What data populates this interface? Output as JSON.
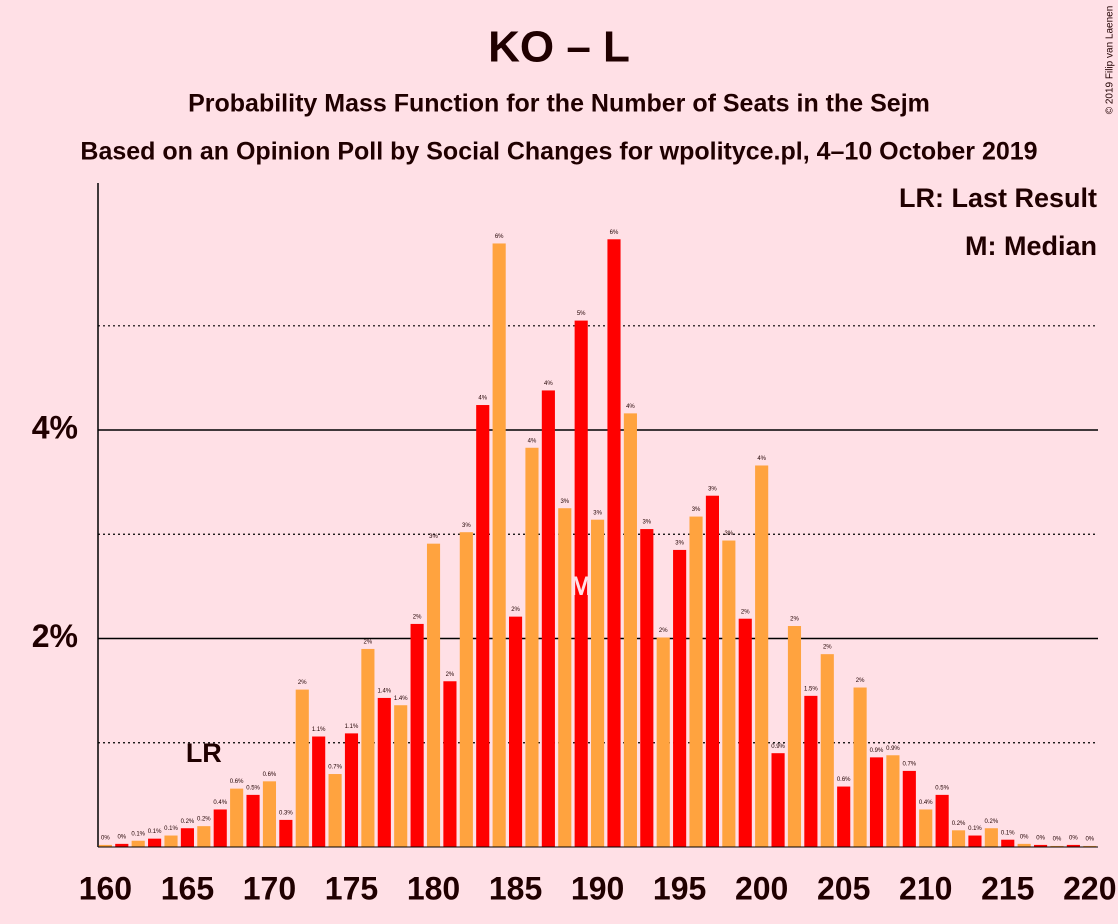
{
  "chart_data": {
    "type": "bar",
    "title": "KO – L",
    "subtitles": [
      "Probability Mass Function for the Number of Seats in the Sejm",
      "Based on an Opinion Poll by Social Changes for wpolityce.pl, 4–10 October 2019"
    ],
    "credit": "© 2019 Filip van Laenen",
    "legend": [
      "LR: Last Result",
      "M: Median"
    ],
    "annotations": [
      {
        "x": 166,
        "label": "LR"
      },
      {
        "x": 189,
        "label": "M"
      }
    ],
    "xlim": [
      159.55,
      220.5
    ],
    "xticks": [
      160,
      165,
      170,
      175,
      180,
      185,
      190,
      195,
      200,
      205,
      210,
      215,
      220
    ],
    "ylim": [
      0,
      6.37
    ],
    "yticks": [
      {
        "value": 2,
        "label": "2%"
      },
      {
        "value": 4,
        "label": "4%"
      }
    ],
    "minor_yticks": [
      1,
      3,
      5
    ],
    "series": [
      {
        "color": "#ff0000",
        "x": [
          161,
          163,
          165,
          167,
          169,
          171,
          173,
          175,
          177,
          179,
          181,
          183,
          185,
          187,
          189,
          191,
          193,
          195,
          197,
          199,
          201,
          203,
          205,
          207,
          209,
          211,
          213,
          215,
          217,
          219
        ],
        "values": [
          0.03,
          0.08,
          0.18,
          0.36,
          0.5,
          0.26,
          1.06,
          1.09,
          1.43,
          2.14,
          1.59,
          4.24,
          2.21,
          4.38,
          5.05,
          5.83,
          3.05,
          2.85,
          3.37,
          2.19,
          0.9,
          1.45,
          0.58,
          0.86,
          0.73,
          0.5,
          0.11,
          0.07,
          0.02,
          0.02
        ],
        "value_labels": [
          "0%",
          "0.1%",
          "0.2%",
          "0.4%",
          "0.5%",
          "0.3%",
          "1.1%",
          "1.1%",
          "1.4%",
          "2%",
          "2%",
          "4%",
          "2%",
          "4%",
          "5%",
          "6%",
          "3%",
          "3%",
          "3%",
          "2%",
          "0.9%",
          "1.5%",
          "0.6%",
          "0.9%",
          "0.7%",
          "0.5%",
          "0.1%",
          "0.1%",
          "0%",
          "0%"
        ]
      },
      {
        "color": "#ffa33f",
        "x": [
          160,
          162,
          164,
          166,
          168,
          170,
          172,
          174,
          176,
          178,
          180,
          182,
          184,
          186,
          188,
          190,
          192,
          194,
          196,
          198,
          200,
          202,
          204,
          206,
          208,
          210,
          212,
          214,
          216,
          218,
          220
        ],
        "values": [
          0.02,
          0.06,
          0.11,
          0.2,
          0.56,
          0.63,
          1.51,
          0.7,
          1.9,
          1.36,
          2.91,
          3.02,
          5.79,
          3.83,
          3.25,
          3.14,
          4.16,
          2.01,
          3.17,
          2.94,
          3.66,
          2.12,
          1.85,
          1.53,
          0.88,
          0.36,
          0.16,
          0.18,
          0.03,
          0.01,
          0.01
        ],
        "value_labels": [
          "0%",
          "0.1%",
          "0.1%",
          "0.2%",
          "0.6%",
          "0.6%",
          "2%",
          "0.7%",
          "2%",
          "1.4%",
          "3%",
          "3%",
          "6%",
          "4%",
          "3%",
          "3%",
          "4%",
          "2%",
          "3%",
          "3%",
          "4%",
          "2%",
          "2%",
          "2%",
          "0.9%",
          "0.4%",
          "0.2%",
          "0.2%",
          "0%",
          "0%",
          "0%"
        ]
      }
    ]
  }
}
